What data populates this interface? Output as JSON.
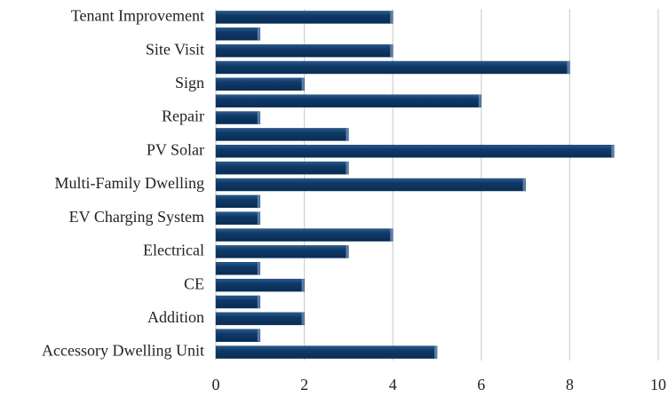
{
  "chart_data": {
    "type": "barh",
    "categories": [
      "Tenant Improvement",
      null,
      "Site Visit",
      null,
      "Sign",
      null,
      "Repair",
      null,
      "PV Solar",
      null,
      "Multi-Family Dwelling",
      null,
      "EV Charging System",
      null,
      "Electrical",
      null,
      "CE",
      null,
      "Addition",
      null,
      "Accessory Dwelling Unit"
    ],
    "values": [
      4,
      1,
      4,
      8,
      2,
      6,
      1,
      3,
      9,
      3,
      7,
      1,
      1,
      4,
      3,
      1,
      2,
      1,
      2,
      1,
      5
    ],
    "color": "#0f3a68",
    "xlim": [
      0,
      10
    ],
    "xticks": [
      0,
      2,
      4,
      6,
      8,
      10
    ],
    "grid": true
  }
}
